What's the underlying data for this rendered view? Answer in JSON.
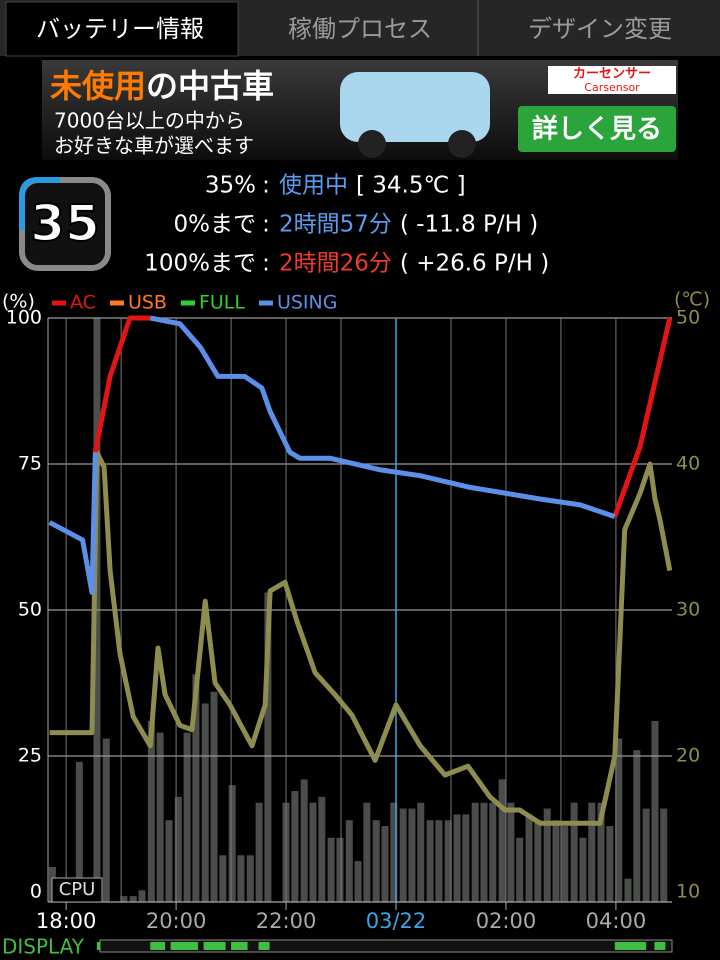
{
  "tabs": [
    {
      "label": "バッテリー情報",
      "active": true
    },
    {
      "label": "稼働プロセス",
      "active": false
    },
    {
      "label": "デザイン変更",
      "active": false
    }
  ],
  "ad": {
    "headline_accent": "未使用",
    "headline_rest": "の中古車",
    "line1": "7000台以上の中から",
    "line2": "お好きな車が選べます",
    "brand": "カーセンサー",
    "brand_en": "Carsensor",
    "button": "詳しく見る"
  },
  "battery": {
    "icon_level": "35",
    "rows": [
      {
        "label": "35%",
        "sep": ":",
        "value": "使用中",
        "value_color": "#5b9cf0",
        "detail": "[ 34.5℃ ]"
      },
      {
        "label": "0%まで",
        "sep": ":",
        "value": "2時間57分",
        "value_color": "#5b9cf0",
        "detail": "( -11.8 P/H )"
      },
      {
        "label": "100%まで",
        "sep": ":",
        "value": "2時間26分",
        "value_color": "#f03a2a",
        "detail": "( +26.6 P/H )"
      }
    ]
  },
  "chart": {
    "type": "line",
    "y_label": "(%)",
    "y2_label": "(℃)",
    "cpu_label": "CPU",
    "display_label": "DISPLAY",
    "xlim": [
      17.67,
      29.02
    ],
    "xticks": [
      {
        "value": 18,
        "label": "18:00"
      },
      {
        "value": 20,
        "label": "20:00"
      },
      {
        "value": 22,
        "label": "22:00"
      },
      {
        "value": 24,
        "label": "03/22",
        "color": "#3aa6e8"
      },
      {
        "value": 26,
        "label": "02:00"
      },
      {
        "value": 28,
        "label": "04:00"
      }
    ],
    "xminor": [
      19,
      21,
      23,
      25,
      27
    ],
    "ylim": [
      0,
      100
    ],
    "yticks": [
      0,
      25,
      50,
      75,
      100
    ],
    "y2lim": [
      10,
      50
    ],
    "y2ticks": [
      10,
      20,
      30,
      40,
      50
    ],
    "series": [
      {
        "name": "AC",
        "color": "#e31414",
        "x": [
          17.7,
          18.3,
          18.47,
          18.53,
          18.8,
          19.16,
          19.53,
          20.07,
          20.44,
          20.76,
          21.25,
          21.56,
          21.71,
          22.07,
          22.25,
          22.8,
          23.71,
          24.44,
          25.35,
          26.62,
          27.35,
          27.98,
          28.44,
          28.98
        ],
        "values": [
          null,
          null,
          null,
          77,
          90,
          100,
          100,
          null,
          null,
          null,
          null,
          null,
          null,
          null,
          null,
          null,
          null,
          null,
          null,
          null,
          null,
          66,
          78,
          100
        ]
      },
      {
        "name": "USB",
        "color": "#ff7a1a",
        "x": [],
        "values": []
      },
      {
        "name": "FULL",
        "color": "#2fd02f",
        "x": [],
        "values": []
      },
      {
        "name": "USING",
        "color": "#5b8fe8",
        "x": [
          17.7,
          18.3,
          18.47,
          18.53,
          18.8,
          19.16,
          19.53,
          20.07,
          20.44,
          20.76,
          21.25,
          21.56,
          21.71,
          22.07,
          22.25,
          22.8,
          23.71,
          24.44,
          25.35,
          26.62,
          27.35,
          27.98,
          28.44,
          28.98
        ],
        "values": [
          65,
          62,
          53,
          77,
          null,
          null,
          100,
          99,
          95,
          90,
          90,
          88,
          84,
          77,
          76,
          76,
          74,
          73,
          71,
          69,
          68,
          66,
          null,
          null
        ]
      }
    ],
    "temperature": {
      "color": "#8e8c4e",
      "axis": "y2",
      "x": [
        17.7,
        18.47,
        18.56,
        18.69,
        18.8,
        18.98,
        19.22,
        19.53,
        19.67,
        19.8,
        20.07,
        20.29,
        20.53,
        20.71,
        20.98,
        21.38,
        21.62,
        21.71,
        21.98,
        22.2,
        22.53,
        22.89,
        23.2,
        23.62,
        24.0,
        24.44,
        24.89,
        25.31,
        25.71,
        25.98,
        26.25,
        26.62,
        27.71,
        27.98,
        28.16,
        28.44,
        28.62,
        28.71,
        28.8,
        28.98
      ],
      "values": [
        21.6,
        21.6,
        40.8,
        39.8,
        32.7,
        27,
        22.7,
        20.7,
        27.4,
        24.2,
        22.1,
        21.8,
        30.6,
        25,
        23.5,
        20.7,
        23.5,
        31.3,
        31.9,
        29.2,
        25.7,
        24.2,
        22.8,
        19.7,
        23.5,
        20.7,
        18.7,
        19.3,
        17.2,
        16.3,
        16.3,
        15.4,
        15.4,
        20,
        35.5,
        38,
        40,
        37.6,
        36.2,
        32.7
      ]
    },
    "cpu": {
      "color": "#4a4d4a",
      "x": [
        17.75,
        17.91,
        18.07,
        18.24,
        18.4,
        18.56,
        18.73,
        18.89,
        19.05,
        19.22,
        19.38,
        19.55,
        19.71,
        19.87,
        20.04,
        20.2,
        20.36,
        20.53,
        20.69,
        20.85,
        21.02,
        21.18,
        21.35,
        21.51,
        21.67,
        21.84,
        22.0,
        22.16,
        22.33,
        22.49,
        22.65,
        22.82,
        22.98,
        23.15,
        23.31,
        23.47,
        23.64,
        23.8,
        23.96,
        24.13,
        24.29,
        24.45,
        24.62,
        24.78,
        24.95,
        25.11,
        25.27,
        25.44,
        25.6,
        25.76,
        25.93,
        26.09,
        26.25,
        26.42,
        26.58,
        26.75,
        26.91,
        27.07,
        27.24,
        27.4,
        27.56,
        27.73,
        27.89,
        28.05,
        28.22,
        28.38,
        28.55,
        28.71,
        28.87
      ],
      "values": [
        6,
        0,
        0,
        24,
        0,
        100,
        28,
        0,
        1,
        1,
        2,
        31,
        29,
        14,
        18,
        29,
        39,
        34,
        36,
        8,
        20,
        8,
        8,
        17,
        53,
        0,
        17,
        19,
        21,
        17,
        18,
        11,
        11,
        14,
        7,
        17,
        14,
        13,
        17,
        16,
        16,
        17,
        14,
        14,
        14,
        15,
        15,
        17,
        17,
        17,
        21,
        17,
        11,
        15,
        14,
        16,
        14,
        13,
        17,
        11,
        17,
        17,
        13,
        28,
        4,
        26,
        16,
        31,
        16
      ]
    },
    "display": {
      "color": "#3fbf3f",
      "intervals": [
        [
          18.56,
          18.62
        ],
        [
          19.53,
          19.8
        ],
        [
          19.9,
          20.4
        ],
        [
          20.5,
          20.9
        ],
        [
          21.0,
          21.3
        ],
        [
          21.5,
          21.7
        ],
        [
          27.98,
          28.55
        ],
        [
          28.7,
          28.9
        ]
      ]
    }
  }
}
